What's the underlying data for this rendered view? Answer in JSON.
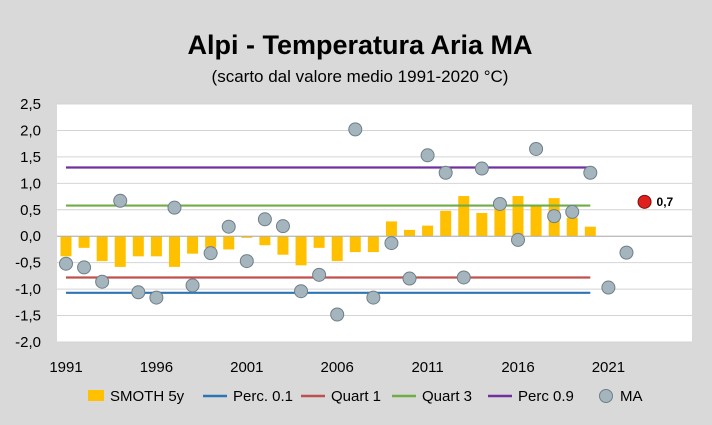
{
  "chart_data": {
    "type": "bar",
    "title": "Alpi  - Temperatura Aria MA",
    "subtitle": "(scarto dal valore medio 1991-2020 °C)",
    "xlabel": "",
    "ylabel": "",
    "ylim": [
      -2.0,
      2.5
    ],
    "xlim": [
      1991,
      2026
    ],
    "grid": true,
    "legend_position": "bottom",
    "y_ticks": [
      "-2,0",
      "-1,5",
      "-1,0",
      "-0,5",
      "0,0",
      "0,5",
      "1,0",
      "1,5",
      "2,0",
      "2,5"
    ],
    "y_tick_values": [
      -2.0,
      -1.5,
      -1.0,
      -0.5,
      0.0,
      0.5,
      1.0,
      1.5,
      2.0,
      2.5
    ],
    "x_ticks": [
      "1991",
      "1996",
      "2001",
      "2006",
      "2011",
      "2016",
      "2021"
    ],
    "x_tick_values": [
      1991,
      1996,
      2001,
      2006,
      2011,
      2016,
      2021
    ],
    "years": [
      1991,
      1992,
      1993,
      1994,
      1995,
      1996,
      1997,
      1998,
      1999,
      2000,
      2001,
      2002,
      2003,
      2004,
      2005,
      2006,
      2007,
      2008,
      2009,
      2010,
      2011,
      2012,
      2013,
      2014,
      2015,
      2016,
      2017,
      2018,
      2019,
      2020,
      2021,
      2022
    ],
    "series": [
      {
        "name": "SMOTH 5y",
        "kind": "bar",
        "color": "#ffc000",
        "x": [
          1991,
          1992,
          1993,
          1994,
          1995,
          1996,
          1997,
          1998,
          1999,
          2000,
          2001,
          2002,
          2003,
          2004,
          2005,
          2006,
          2007,
          2008,
          2009,
          2010,
          2011,
          2012,
          2013,
          2014,
          2015,
          2016,
          2017,
          2018,
          2019,
          2020
        ],
        "values": [
          -0.38,
          -0.22,
          -0.47,
          -0.58,
          -0.38,
          -0.38,
          -0.58,
          -0.33,
          -0.22,
          -0.25,
          -0.03,
          -0.17,
          -0.35,
          -0.55,
          -0.22,
          -0.47,
          -0.3,
          -0.3,
          0.28,
          0.12,
          0.2,
          0.48,
          0.76,
          0.44,
          0.55,
          0.76,
          0.6,
          0.72,
          0.35,
          0.18
        ]
      },
      {
        "name": "Perc. 0.1",
        "kind": "hline",
        "color": "#2e75b6",
        "value": -1.07,
        "x_range": [
          1991,
          2020
        ]
      },
      {
        "name": "Quart 1",
        "kind": "hline",
        "color": "#c0504d",
        "value": -0.78,
        "x_range": [
          1991,
          2020
        ]
      },
      {
        "name": "Quart 3",
        "kind": "hline",
        "color": "#70ad47",
        "value": 0.58,
        "x_range": [
          1991,
          2020
        ]
      },
      {
        "name": "Perc 0.9",
        "kind": "hline",
        "color": "#7030a0",
        "value": 1.3,
        "x_range": [
          1991,
          2020
        ]
      },
      {
        "name": "MA",
        "kind": "scatter",
        "color": "#a5b5bd",
        "x": [
          1991,
          1992,
          1993,
          1994,
          1995,
          1996,
          1997,
          1998,
          1999,
          2000,
          2001,
          2002,
          2003,
          2004,
          2005,
          2006,
          2007,
          2008,
          2009,
          2010,
          2011,
          2012,
          2013,
          2014,
          2015,
          2016,
          2017,
          2018,
          2019,
          2020,
          2021,
          2022
        ],
        "values": [
          -0.52,
          -0.59,
          -0.86,
          0.67,
          -1.06,
          -1.16,
          0.54,
          -0.93,
          -0.32,
          0.18,
          -0.47,
          0.32,
          0.19,
          -1.04,
          -0.73,
          -1.48,
          2.02,
          -1.16,
          -0.13,
          -0.8,
          1.53,
          1.2,
          -0.78,
          1.28,
          0.61,
          -0.07,
          1.65,
          0.38,
          0.46,
          1.2,
          -0.97,
          -0.31
        ]
      }
    ],
    "annotation": {
      "label": "0,7",
      "x": 2023,
      "y": 0.65,
      "marker_color": "#e0201c"
    }
  }
}
